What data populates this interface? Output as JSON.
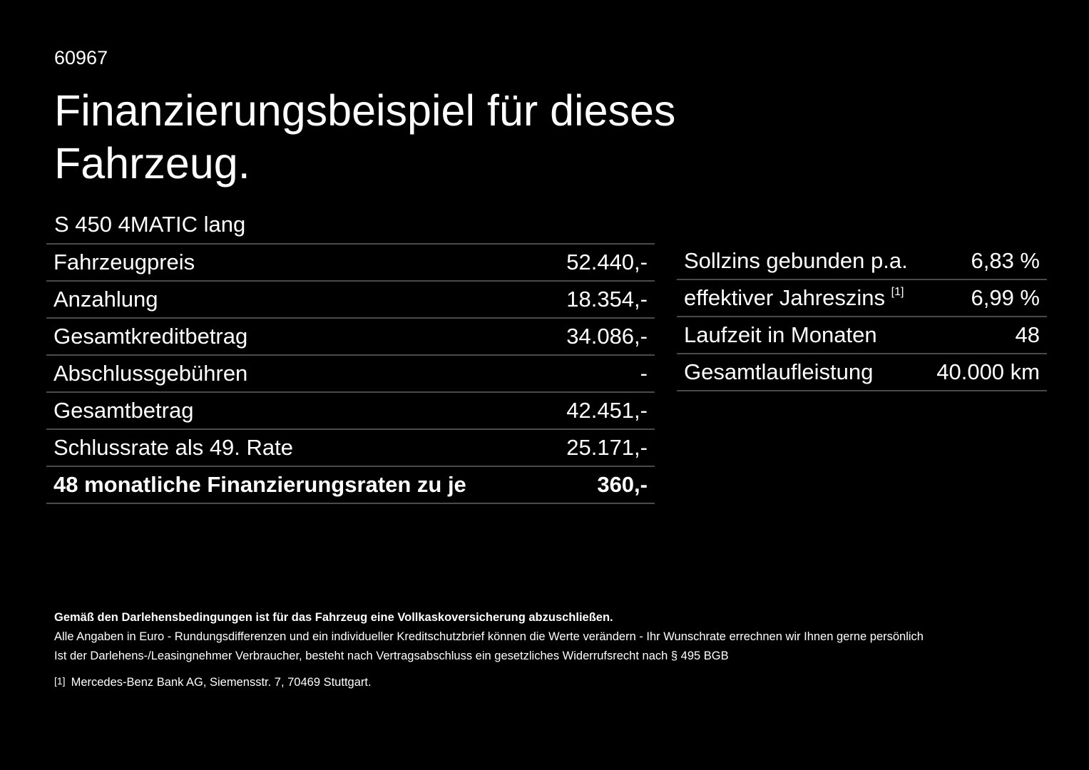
{
  "code": "60967",
  "title": "Finanzierungsbeispiel für dieses Fahrzeug.",
  "model": "S 450 4MATIC lang",
  "left_table": [
    {
      "label": "Fahrzeugpreis",
      "value": "52.440,-"
    },
    {
      "label": "Anzahlung",
      "value": "18.354,-"
    },
    {
      "label": "Gesamtkreditbetrag",
      "value": "34.086,-"
    },
    {
      "label": "Abschlussgebühren",
      "value": "-"
    },
    {
      "label": "Gesamtbetrag",
      "value": "42.451,-"
    },
    {
      "label": "Schlussrate als 49. Rate",
      "value": "25.171,-"
    },
    {
      "label": "48 monatliche Finanzierungsraten zu je",
      "value": "360,-"
    }
  ],
  "right_table": [
    {
      "label": "Sollzins gebunden p.a.",
      "value": "6,83 %"
    },
    {
      "label": "effektiver Jahreszins",
      "sup": "[1]",
      "value": "6,99 %"
    },
    {
      "label": "Laufzeit in Monaten",
      "value": "48"
    },
    {
      "label": "Gesamtlaufleistung",
      "value": "40.000 km"
    }
  ],
  "footer": {
    "bold": "Gemäß den Darlehensbedingungen ist für das Fahrzeug eine Vollkaskoversicherung abzuschließen.",
    "line1": "Alle Angaben in Euro - Rundungsdifferenzen und ein individueller Kreditschutzbrief können die Werte verändern - Ihr Wunschrate errechnen wir Ihnen gerne persönlich",
    "line2": "Ist der Darlehens-/Leasingnehmer Verbraucher, besteht nach Vertragsabschluss ein gesetzliches Widerrufsrecht nach § 495 BGB",
    "footnote_mark": "[1]",
    "footnote": "Mercedes-Benz Bank AG, Siemensstr. 7, 70469 Stuttgart."
  }
}
